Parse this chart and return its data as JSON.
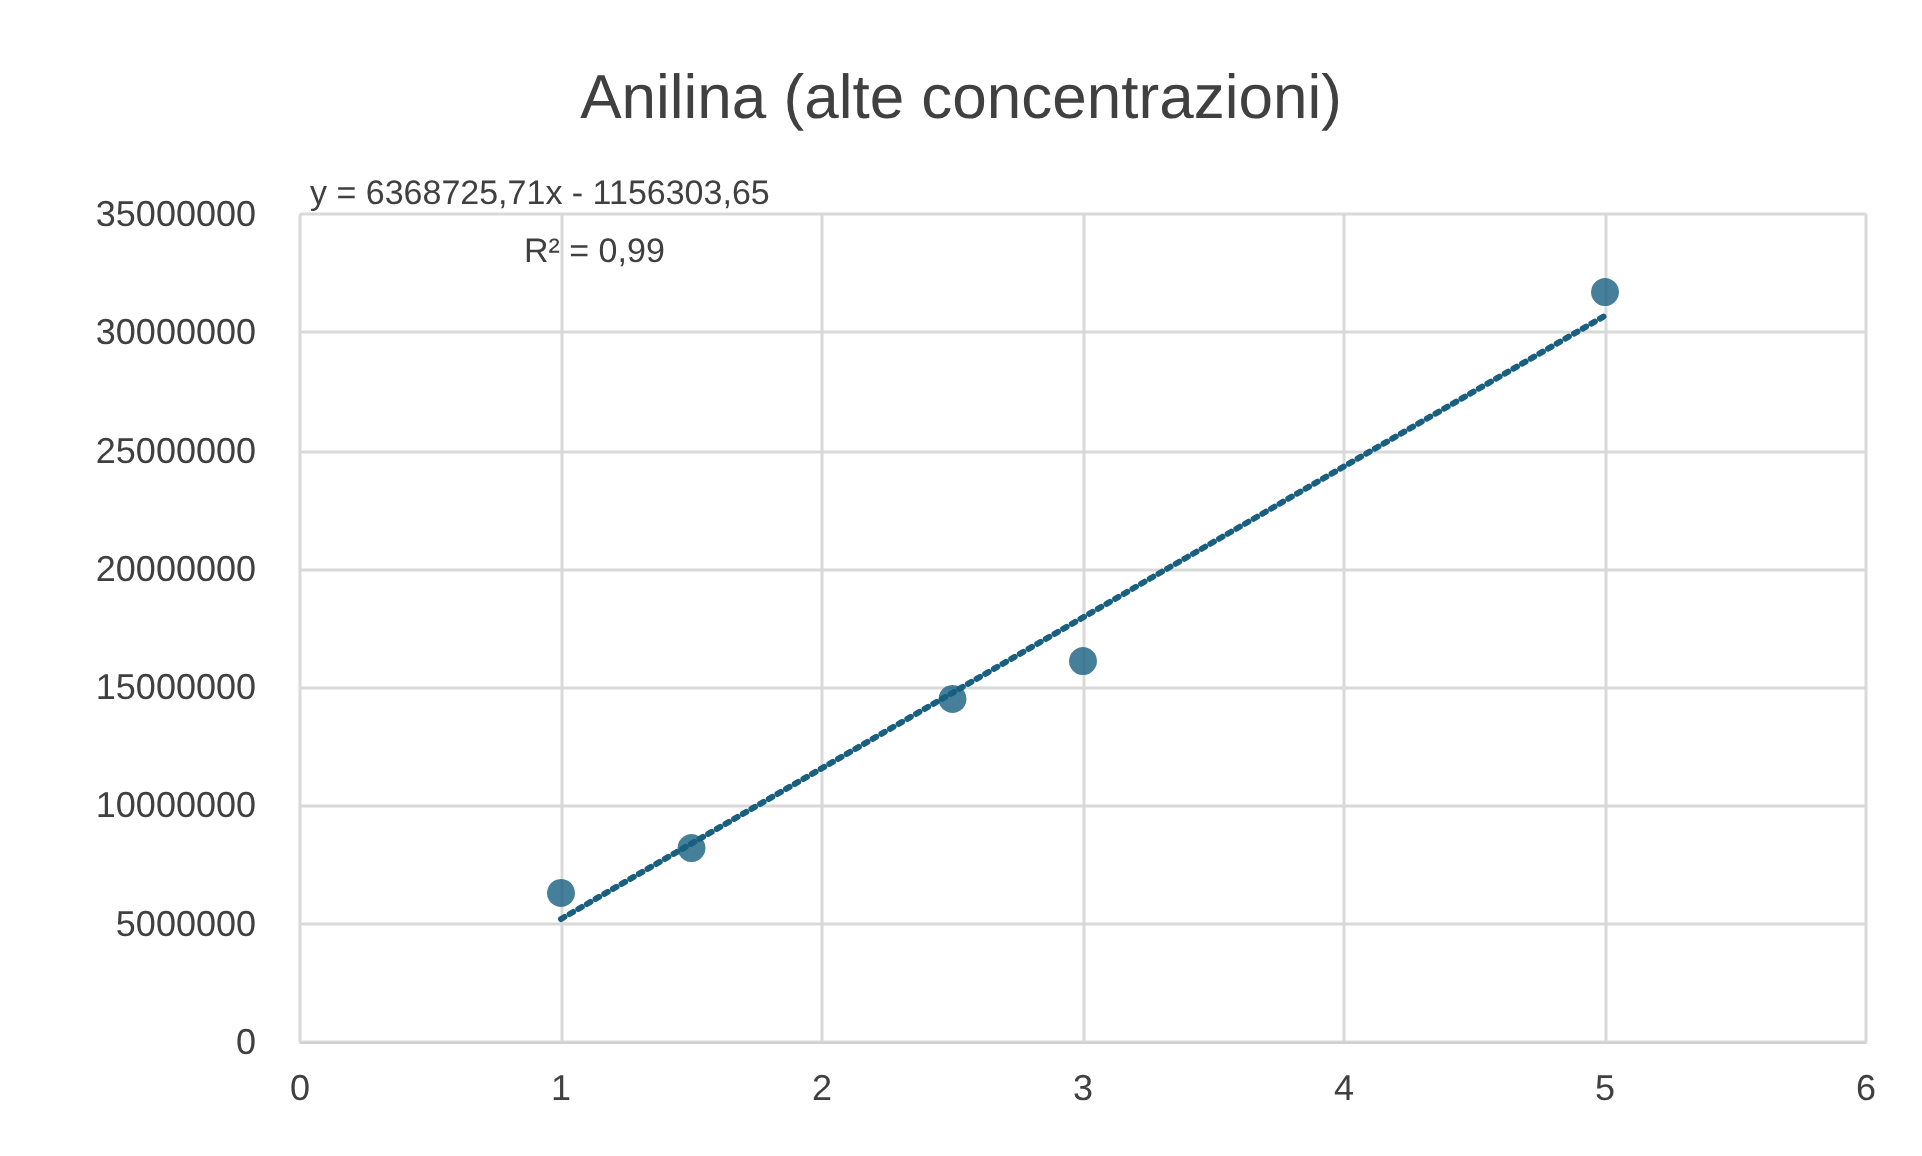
{
  "chart_data": {
    "type": "scatter",
    "title": "Anilina (alte concentrazioni)",
    "x": [
      1,
      1.5,
      2.5,
      3,
      5
    ],
    "series": [
      {
        "color": "#185f80",
        "marker": "circle",
        "values": [
          6300000,
          8200000,
          14500000,
          16100000,
          31700000
        ]
      },
      {
        "type": "line",
        "color": "#185f80",
        "marker": "none",
        "line_style": "dotted",
        "x": [
          1,
          5
        ],
        "values": [
          5200000,
          30700000
        ]
      }
    ],
    "xlim": [
      0,
      6
    ],
    "xticks": [
      0,
      1,
      2,
      3,
      4,
      5,
      6
    ],
    "ylim": [
      0,
      35000000
    ],
    "yticks": [
      0,
      5000000,
      10000000,
      15000000,
      20000000,
      25000000,
      30000000,
      35000000
    ],
    "grid": true,
    "annotations": [
      "y = 6368725,71x - 1156303,65",
      "R² = 0,99"
    ]
  }
}
